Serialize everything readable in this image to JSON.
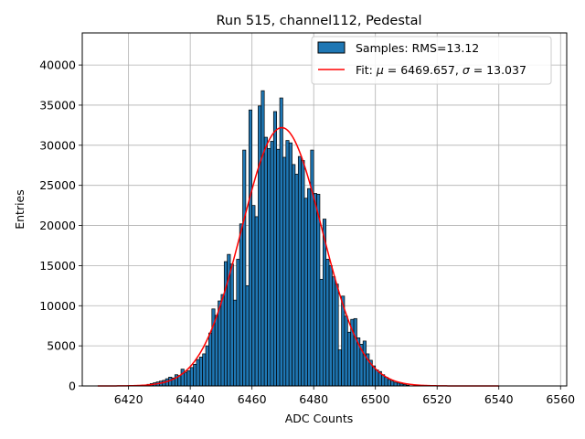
{
  "chart_data": {
    "type": "bar",
    "title": "Run 515, channel112, Pedestal",
    "xlabel": "ADC Counts",
    "ylabel": "Entries",
    "xlim": [
      6405,
      6562
    ],
    "ylim": [
      0,
      44000
    ],
    "xticks": [
      6420,
      6440,
      6460,
      6480,
      6500,
      6520,
      6540,
      6560
    ],
    "yticks": [
      0,
      5000,
      10000,
      15000,
      20000,
      25000,
      30000,
      35000,
      40000
    ],
    "grid": true,
    "legend_position": "top-right",
    "colors": {
      "bars": "#1f77b4",
      "bar_edge": "#000000",
      "fit": "#ff0000",
      "grid": "#b0b0b0"
    },
    "legend": {
      "samples_label": "Samples: RMS=13.12",
      "fit_label_prefix": "Fit: ",
      "fit_mu_symbol": "μ",
      "fit_mu_text": " = 6469.657, ",
      "fit_sigma_symbol": "σ",
      "fit_sigma_text": " = 13.037"
    },
    "histogram": {
      "bin_width": 1,
      "bins": [
        [
          6426,
          200
        ],
        [
          6427,
          300
        ],
        [
          6428,
          400
        ],
        [
          6429,
          500
        ],
        [
          6430,
          600
        ],
        [
          6431,
          700
        ],
        [
          6432,
          900
        ],
        [
          6433,
          1100
        ],
        [
          6434,
          1000
        ],
        [
          6435,
          1400
        ],
        [
          6436,
          1300
        ],
        [
          6437,
          2100
        ],
        [
          6438,
          1700
        ],
        [
          6439,
          1900
        ],
        [
          6440,
          2300
        ],
        [
          6441,
          2700
        ],
        [
          6442,
          3300
        ],
        [
          6443,
          3600
        ],
        [
          6444,
          4000
        ],
        [
          6445,
          5000
        ],
        [
          6446,
          6600
        ],
        [
          6447,
          9600
        ],
        [
          6448,
          8800
        ],
        [
          6449,
          10600
        ],
        [
          6450,
          11400
        ],
        [
          6451,
          15500
        ],
        [
          6452,
          16400
        ],
        [
          6453,
          15200
        ],
        [
          6454,
          10700
        ],
        [
          6455,
          15800
        ],
        [
          6456,
          20200
        ],
        [
          6457,
          29400
        ],
        [
          6458,
          12500
        ],
        [
          6459,
          34400
        ],
        [
          6460,
          22500
        ],
        [
          6461,
          21100
        ],
        [
          6462,
          34900
        ],
        [
          6463,
          36800
        ],
        [
          6464,
          31000
        ],
        [
          6465,
          29600
        ],
        [
          6466,
          30500
        ],
        [
          6467,
          34200
        ],
        [
          6468,
          29500
        ],
        [
          6469,
          35900
        ],
        [
          6470,
          28500
        ],
        [
          6471,
          30600
        ],
        [
          6472,
          30300
        ],
        [
          6473,
          27600
        ],
        [
          6474,
          26400
        ],
        [
          6475,
          28600
        ],
        [
          6476,
          28100
        ],
        [
          6477,
          23400
        ],
        [
          6478,
          24600
        ],
        [
          6479,
          29400
        ],
        [
          6480,
          24000
        ],
        [
          6481,
          23900
        ],
        [
          6482,
          13300
        ],
        [
          6483,
          20800
        ],
        [
          6484,
          15800
        ],
        [
          6485,
          15000
        ],
        [
          6486,
          13600
        ],
        [
          6487,
          12700
        ],
        [
          6488,
          4500
        ],
        [
          6489,
          11200
        ],
        [
          6490,
          8700
        ],
        [
          6491,
          6700
        ],
        [
          6492,
          8300
        ],
        [
          6493,
          8400
        ],
        [
          6494,
          6000
        ],
        [
          6495,
          5200
        ],
        [
          6496,
          5600
        ],
        [
          6497,
          4000
        ],
        [
          6498,
          3200
        ],
        [
          6499,
          2500
        ],
        [
          6500,
          2000
        ],
        [
          6501,
          1800
        ],
        [
          6502,
          1400
        ],
        [
          6503,
          1100
        ],
        [
          6504,
          800
        ],
        [
          6505,
          600
        ],
        [
          6506,
          450
        ],
        [
          6507,
          350
        ],
        [
          6508,
          250
        ],
        [
          6509,
          180
        ],
        [
          6510,
          100
        ]
      ]
    },
    "fit": {
      "function": "gaussian",
      "mu": 6469.657,
      "sigma": 13.037,
      "amplitude": 32200,
      "x_range": [
        6410,
        6540
      ]
    }
  }
}
